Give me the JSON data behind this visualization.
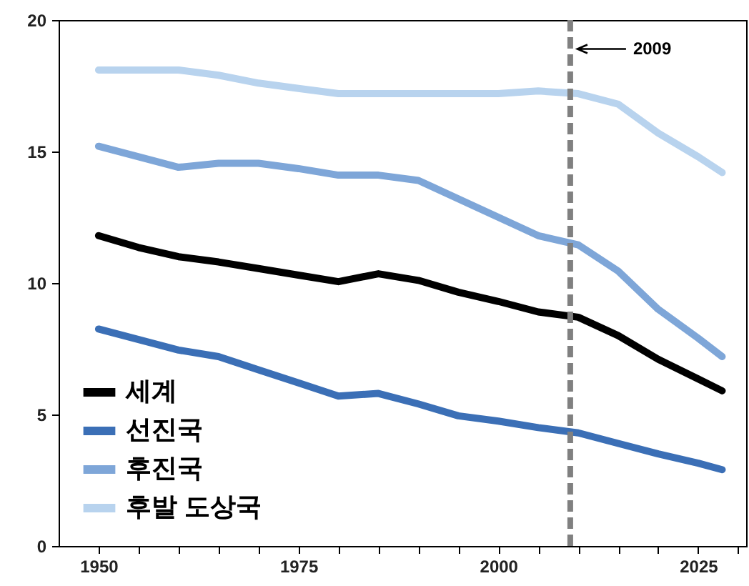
{
  "chart_data": {
    "type": "line",
    "x": [
      1950,
      1955,
      1960,
      1965,
      1970,
      1975,
      1980,
      1985,
      1990,
      1995,
      2000,
      2005,
      2010,
      2015,
      2020,
      2025,
      2028
    ],
    "series": [
      {
        "name": "세계",
        "color": "#000000",
        "values": [
          11.8,
          11.35,
          11.0,
          10.8,
          10.55,
          10.3,
          10.05,
          10.35,
          10.1,
          9.65,
          9.3,
          8.9,
          8.7,
          8.0,
          7.1,
          6.35,
          5.9
        ]
      },
      {
        "name": "선진국",
        "color": "#3b6fb6",
        "values": [
          8.25,
          7.85,
          7.45,
          7.2,
          6.7,
          6.2,
          5.7,
          5.8,
          5.4,
          4.95,
          4.75,
          4.5,
          4.3,
          3.9,
          3.5,
          3.15,
          2.9
        ]
      },
      {
        "name": "후진국",
        "color": "#7ea6d8",
        "values": [
          15.2,
          14.8,
          14.4,
          14.55,
          14.55,
          14.35,
          14.1,
          14.1,
          13.9,
          13.2,
          12.5,
          11.8,
          11.45,
          10.45,
          9.0,
          7.9,
          7.2
        ]
      },
      {
        "name": "후발  도상국",
        "color": "#b8d3ee",
        "values": [
          18.1,
          18.1,
          18.1,
          17.9,
          17.6,
          17.4,
          17.2,
          17.2,
          17.2,
          17.2,
          17.2,
          17.3,
          17.2,
          16.8,
          15.7,
          14.8,
          14.2
        ]
      }
    ],
    "xlim": [
      1945,
      2031
    ],
    "xticks": [
      1950,
      {
        "value": 1955,
        "label": null
      },
      {
        "value": 1960,
        "label": null
      },
      {
        "value": 1965,
        "label": null
      },
      {
        "value": 1970,
        "label": null
      },
      1975,
      {
        "value": 1980,
        "label": null
      },
      {
        "value": 1985,
        "label": null
      },
      {
        "value": 1990,
        "label": null
      },
      {
        "value": 1995,
        "label": null
      },
      2000,
      {
        "value": 2005,
        "label": null
      },
      {
        "value": 2010,
        "label": null
      },
      {
        "value": 2015,
        "label": null
      },
      {
        "value": 2020,
        "label": null
      },
      2025,
      {
        "value": 2030,
        "label": null
      }
    ],
    "ylim": [
      0,
      20
    ],
    "yticks": [
      0,
      5,
      10,
      15,
      20
    ],
    "ref_lines": [
      {
        "axis": "x",
        "value": 2009,
        "label": "2009",
        "color": "#808080",
        "line_style": "dashed"
      }
    ],
    "grid": false,
    "legend": "bottom left",
    "marker": "none",
    "line_style": "solid"
  }
}
